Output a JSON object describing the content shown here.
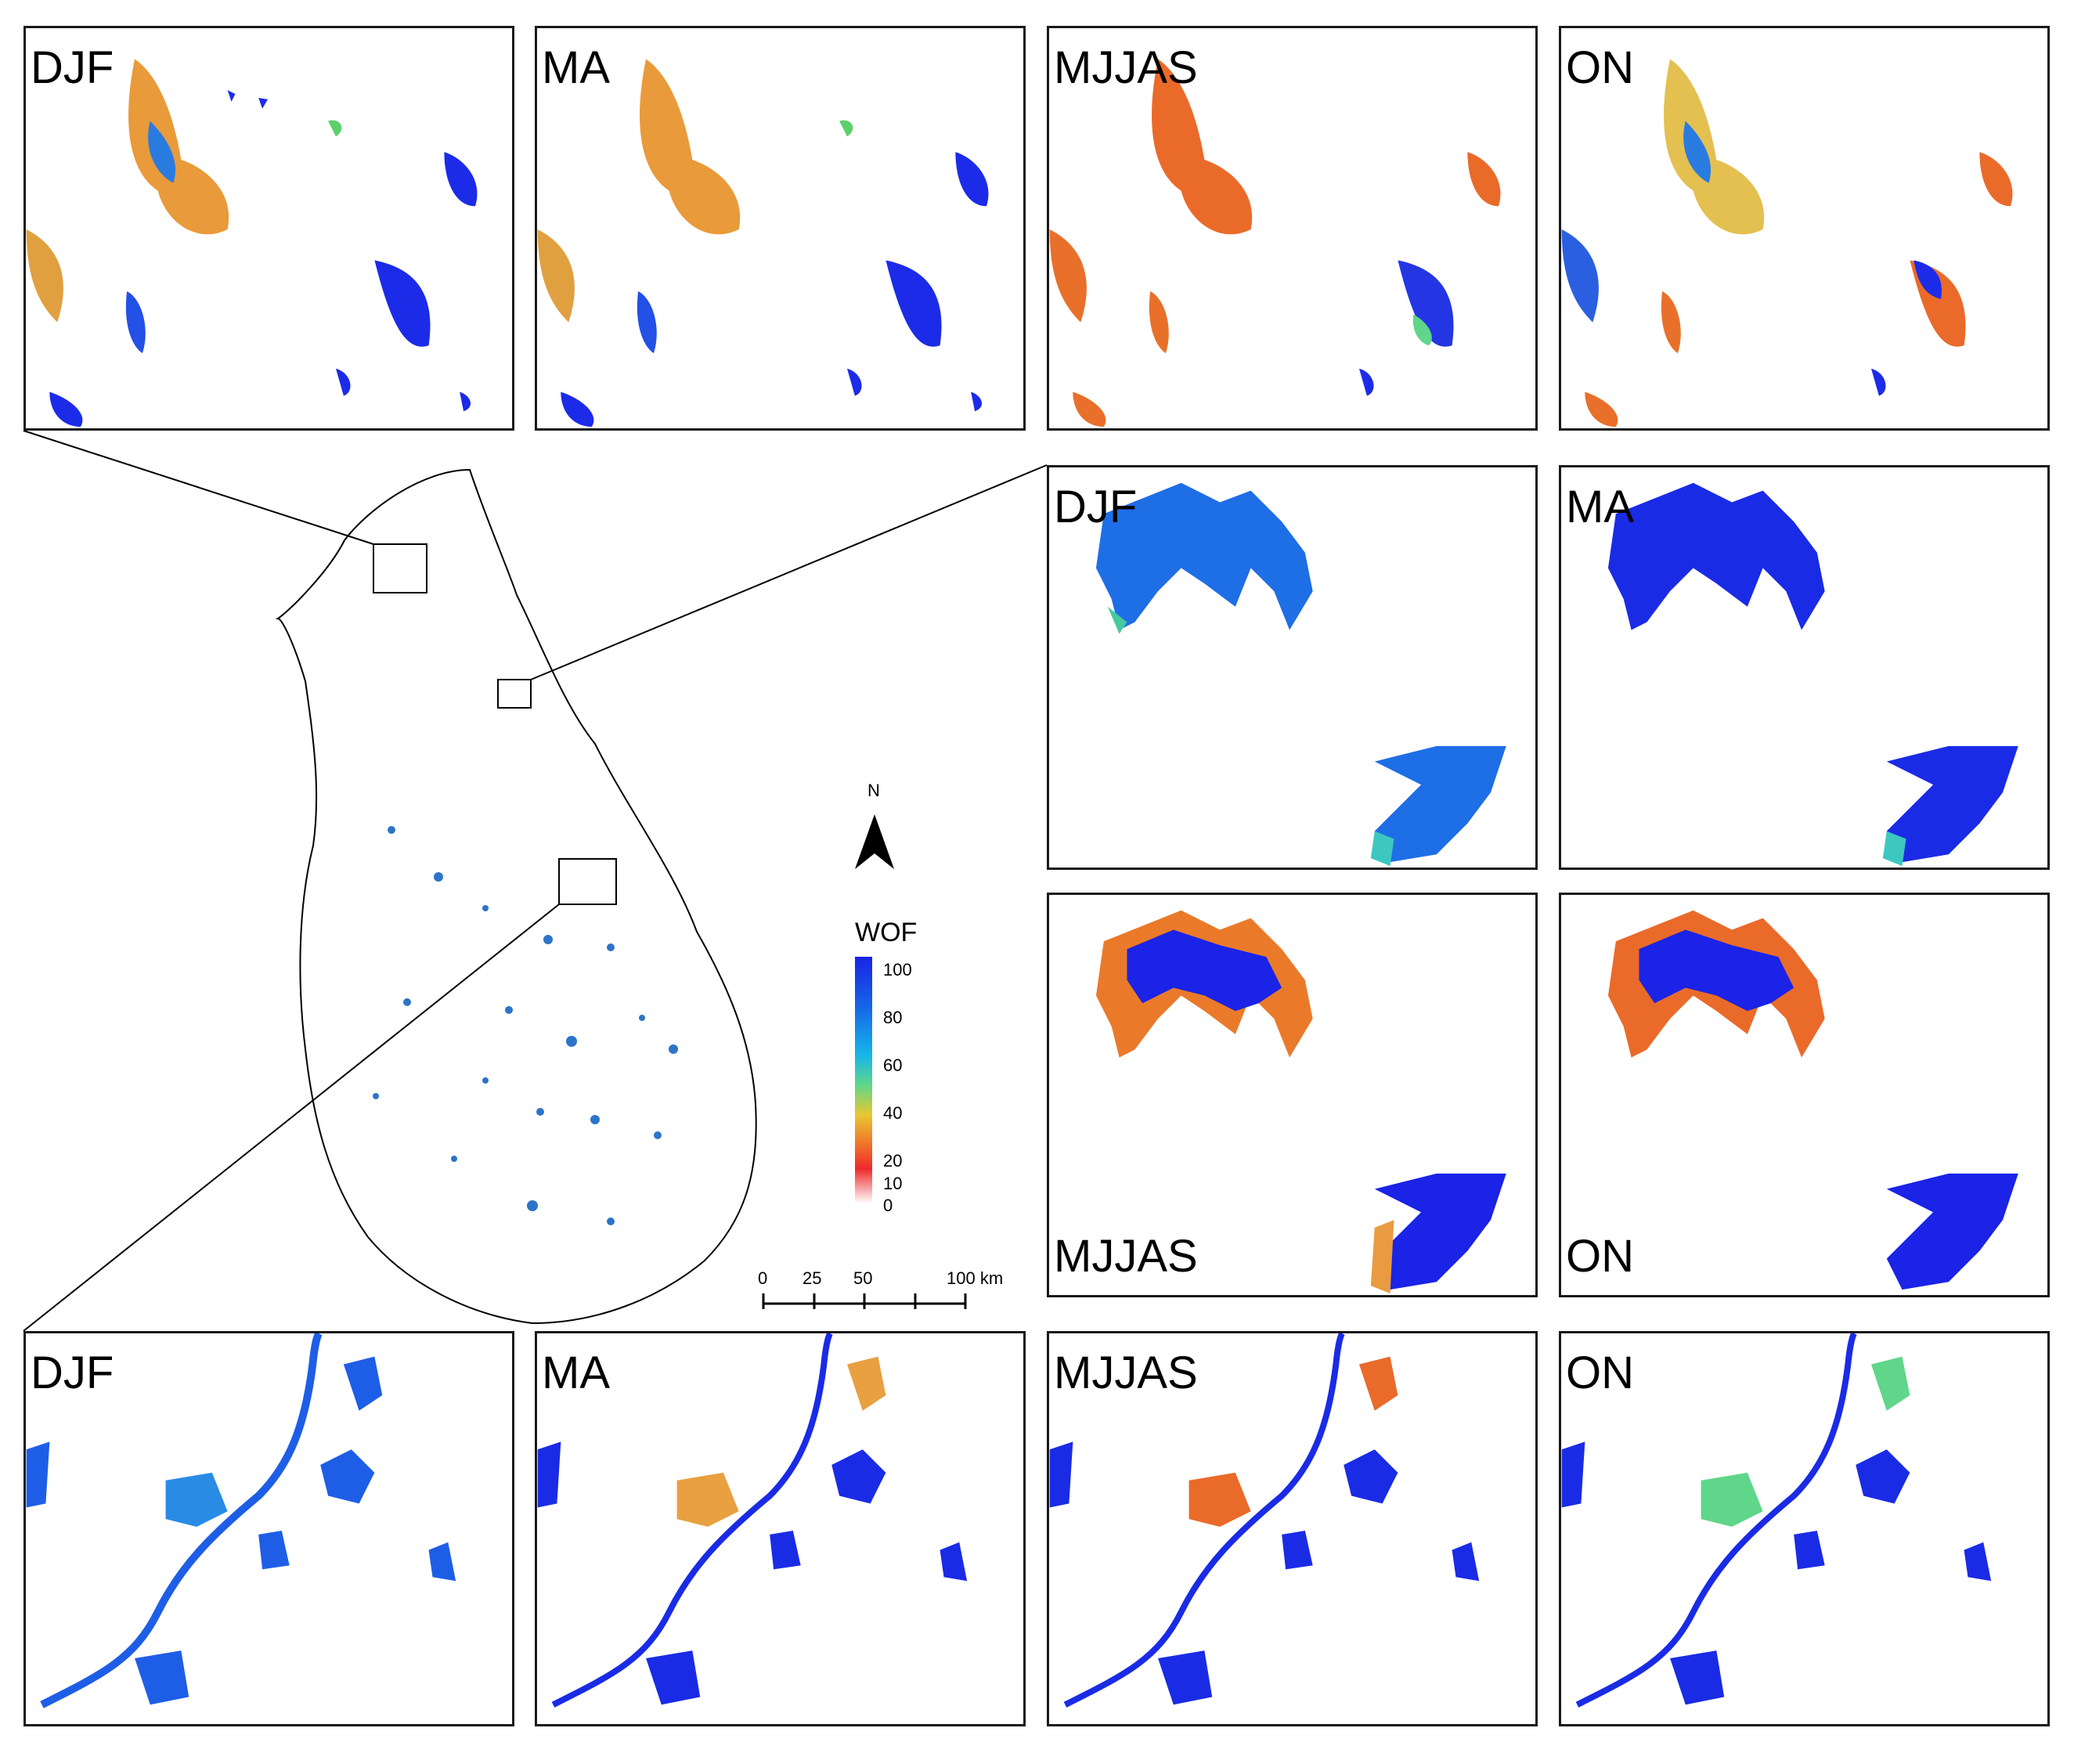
{
  "panels": {
    "top": {
      "labels": [
        "DJF",
        "MA",
        "MJJAS",
        "ON"
      ],
      "label_position": "top-left"
    },
    "middle": {
      "labels": [
        "DJF",
        "MA",
        "MJJAS",
        "ON"
      ],
      "label_positions": [
        "top-left",
        "top-left",
        "bottom-left",
        "bottom-left"
      ]
    },
    "bottom": {
      "labels": [
        "DJF",
        "MA",
        "MJJAS",
        "ON"
      ],
      "label_position": "top-left"
    }
  },
  "legend": {
    "title": "WOF",
    "ticks": [
      "100",
      "80",
      "60",
      "40",
      "20",
      "10",
      "0"
    ],
    "colors": {
      "100": "#1a23e6",
      "80": "#1565e6",
      "60": "#17b6e8",
      "40": "#60d68a",
      "20": "#f07a2a",
      "10": "#ee2a2a",
      "0": "#ffffff"
    }
  },
  "scale_bar": {
    "labels": [
      "0",
      "25",
      "50",
      "100 km"
    ]
  },
  "north_arrow": {
    "label": "N",
    "icon": "north-arrow-icon"
  },
  "main_map": {
    "region": "Sri Lanka",
    "land_color": "#ffffff",
    "outline_color": "#000000"
  }
}
